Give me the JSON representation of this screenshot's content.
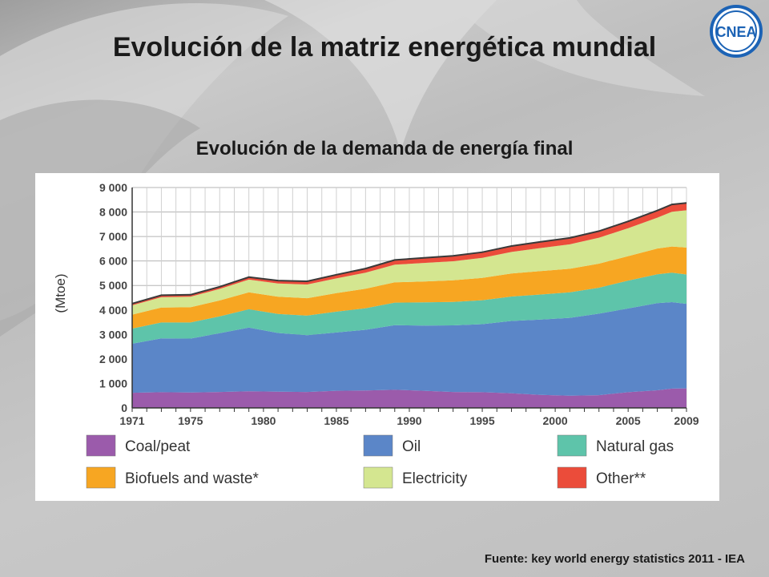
{
  "slide": {
    "title": "Evolución de la matriz energética mundial",
    "chart_heading": "Evolución de la demanda de energía final",
    "source": "Fuente: key world energy statistics 2011 - IEA",
    "logo_text": "CNEA"
  },
  "chart_data": {
    "type": "area",
    "stacked": true,
    "ylabel": "(Mtoe)",
    "xlabel": "",
    "ylim": [
      0,
      9000
    ],
    "xlim": [
      1971,
      2009
    ],
    "grid": true,
    "legend_placement": "bottom",
    "y_ticks": [
      "0",
      "1 000",
      "2 000",
      "3 000",
      "4 000",
      "5 000",
      "6 000",
      "7 000",
      "8 000",
      "9 000"
    ],
    "x_ticks": [
      "1971",
      "1975",
      "1980",
      "1985",
      "1990",
      "1995",
      "2000",
      "2005",
      "2009"
    ],
    "x": [
      1971,
      1973,
      1975,
      1977,
      1979,
      1981,
      1983,
      1985,
      1987,
      1989,
      1991,
      1993,
      1995,
      1997,
      1999,
      2001,
      2003,
      2005,
      2007,
      2008,
      2009
    ],
    "series": [
      {
        "name": "Coal/peat",
        "color": "#9b5bab",
        "values": [
          620,
          640,
          630,
          650,
          680,
          660,
          650,
          700,
          710,
          740,
          700,
          650,
          640,
          600,
          530,
          500,
          520,
          640,
          720,
          790,
          800
        ]
      },
      {
        "name": "Oil",
        "color": "#5b86c8",
        "values": [
          2000,
          2200,
          2200,
          2400,
          2600,
          2400,
          2320,
          2380,
          2480,
          2640,
          2660,
          2720,
          2780,
          2950,
          3080,
          3180,
          3330,
          3420,
          3560,
          3530,
          3450
        ]
      },
      {
        "name": "Natural gas",
        "color": "#5ec4aa",
        "values": [
          620,
          650,
          660,
          690,
          750,
          780,
          800,
          850,
          880,
          920,
          950,
          960,
          980,
          1000,
          1020,
          1040,
          1060,
          1140,
          1180,
          1200,
          1200
        ]
      },
      {
        "name": "Biofuels and waste*",
        "color": "#f7a622",
        "values": [
          570,
          610,
          620,
          650,
          690,
          700,
          710,
          760,
          800,
          830,
          850,
          880,
          910,
          940,
          960,
          960,
          980,
          1000,
          1050,
          1070,
          1100
        ]
      },
      {
        "name": "Electricity",
        "color": "#d4e690",
        "values": [
          380,
          420,
          430,
          470,
          520,
          540,
          560,
          600,
          650,
          720,
          760,
          780,
          820,
          880,
          940,
          1000,
          1060,
          1140,
          1260,
          1420,
          1520
        ]
      },
      {
        "name": "Other**",
        "color": "#eb4c3a",
        "values": [
          70,
          80,
          80,
          90,
          100,
          120,
          130,
          150,
          170,
          190,
          210,
          220,
          230,
          240,
          250,
          260,
          270,
          280,
          290,
          300,
          300
        ]
      }
    ]
  }
}
